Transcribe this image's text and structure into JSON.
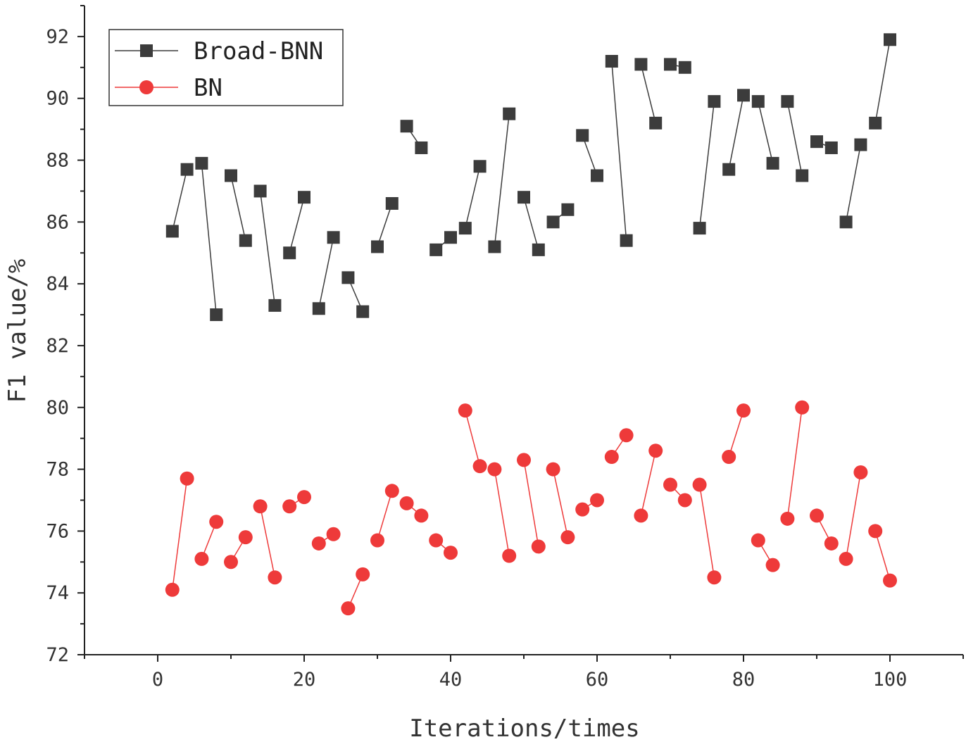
{
  "chart_data": {
    "type": "line",
    "title": "",
    "xlabel": "Iterations/times",
    "ylabel": "F1 value/%",
    "xlim": [
      -10,
      110
    ],
    "ylim": [
      72,
      93
    ],
    "xticks": [
      0,
      20,
      40,
      60,
      80,
      100
    ],
    "yticks": [
      72,
      74,
      76,
      78,
      80,
      82,
      84,
      86,
      88,
      90,
      92
    ],
    "grid": false,
    "legend_position": "top-left",
    "x": [
      2,
      4,
      6,
      8,
      10,
      12,
      14,
      16,
      18,
      20,
      22,
      24,
      26,
      28,
      30,
      32,
      34,
      36,
      38,
      40,
      42,
      44,
      46,
      48,
      50,
      52,
      54,
      56,
      58,
      60,
      62,
      64,
      66,
      68,
      70,
      72,
      74,
      76,
      78,
      80,
      82,
      84,
      86,
      88,
      90,
      92,
      94,
      96,
      98,
      100
    ],
    "series": [
      {
        "name": "Broad-BNN",
        "color": "#3c3c3c",
        "marker": "square",
        "values": [
          85.7,
          87.7,
          87.9,
          83.0,
          87.5,
          85.4,
          87.0,
          83.3,
          85.0,
          86.8,
          83.2,
          85.5,
          84.2,
          83.1,
          85.2,
          86.6,
          89.1,
          88.4,
          85.1,
          85.5,
          85.8,
          87.8,
          85.2,
          89.5,
          86.8,
          85.1,
          86.0,
          86.4,
          88.8,
          87.5,
          91.2,
          85.4,
          91.1,
          89.2,
          91.1,
          91.0,
          85.8,
          89.9,
          87.7,
          90.1,
          89.9,
          87.9,
          89.9,
          87.5,
          88.6,
          88.4,
          86.0,
          88.5,
          89.2,
          91.9
        ]
      },
      {
        "name": "BN",
        "color": "#ee3a3a",
        "marker": "circle",
        "values": [
          74.1,
          77.7,
          75.1,
          76.3,
          75.0,
          75.8,
          76.8,
          74.5,
          76.8,
          77.1,
          75.6,
          75.9,
          73.5,
          74.6,
          75.7,
          77.3,
          76.9,
          76.5,
          75.7,
          75.3,
          79.9,
          78.1,
          78.0,
          75.2,
          78.3,
          75.5,
          78.0,
          75.8,
          76.7,
          77.0,
          78.4,
          79.1,
          76.5,
          78.6,
          77.5,
          77.0,
          77.5,
          74.5,
          78.4,
          79.9,
          75.7,
          74.9,
          76.4,
          80.0,
          76.5,
          75.6,
          75.1,
          77.9,
          76.0,
          74.4
        ]
      }
    ]
  }
}
